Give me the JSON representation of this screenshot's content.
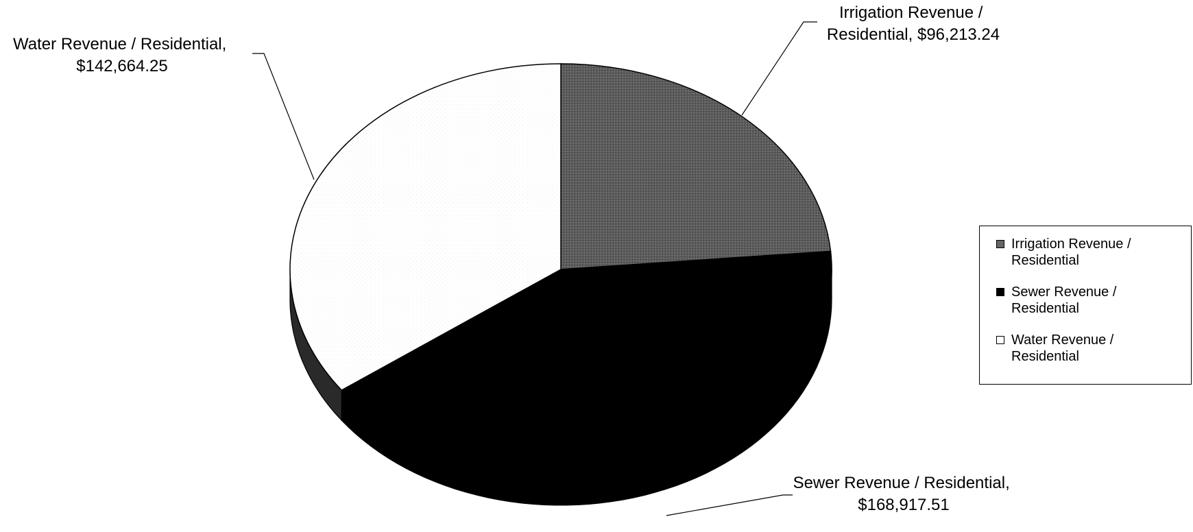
{
  "chart_data": {
    "type": "pie",
    "title": "",
    "slices": [
      {
        "label": "Irrigation Revenue / Residential",
        "value": 96213.24,
        "display": "$96,213.24",
        "color": "#5a5a5a"
      },
      {
        "label": "Sewer Revenue / Residential",
        "value": 168917.51,
        "display": "$168,917.51",
        "color": "#000000"
      },
      {
        "label": "Water Revenue / Residential",
        "value": 142664.25,
        "display": "$142,664.25",
        "color": "#ffffff"
      }
    ],
    "style": "3d",
    "legend_position": "right",
    "data_labels": [
      {
        "line1": "Irrigation Revenue /",
        "line2": "Residential, $96,213.24"
      },
      {
        "line1": "Sewer Revenue / Residential,",
        "line2": "$168,917.51"
      },
      {
        "line1": "Water Revenue / Residential,",
        "line2": "$142,664.25"
      }
    ]
  },
  "legend": {
    "items": [
      {
        "line1": "Irrigation Revenue /",
        "line2": "Residential",
        "color": "#5a5a5a"
      },
      {
        "line1": "Sewer Revenue /",
        "line2": "Residential",
        "color": "#000000"
      },
      {
        "line1": "Water Revenue /",
        "line2": "Residential",
        "color": "#ffffff"
      }
    ]
  }
}
